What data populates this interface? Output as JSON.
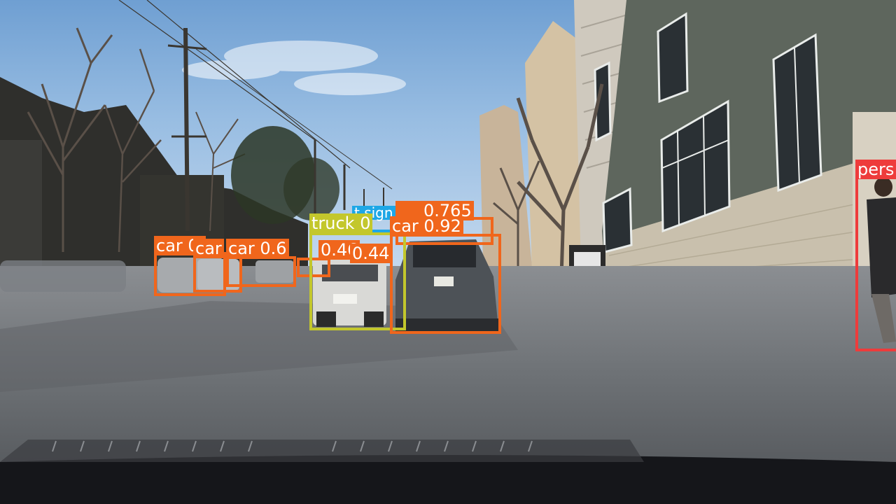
{
  "scene": {
    "description_colors": {
      "sky_top": "#6f9fd2",
      "road": "#75787c",
      "sidewalk": "#b7b2a7",
      "building_green": "#5e665d",
      "building_stone": "#c9c0ad"
    }
  },
  "detections": [
    {
      "id": "car-left-1",
      "label": "car 0.",
      "color": "#f0661c"
    },
    {
      "id": "car-left-2",
      "label": "car",
      "color": "#f0661c"
    },
    {
      "id": "car-left-3",
      "label": "car 0.6",
      "color": "#f0661c"
    },
    {
      "id": "truck",
      "label": "truck 0",
      "color": "#c3c72c"
    },
    {
      "id": "car-mid-1",
      "label": "0.46",
      "color": "#f0661c"
    },
    {
      "id": "car-mid-2",
      "label": "0.44",
      "color": "#f0661c"
    },
    {
      "id": "stop-sign",
      "label": "t sign",
      "color": "#1ea7e6"
    },
    {
      "id": "car-far",
      "label": "0.765",
      "color": "#f0661c"
    },
    {
      "id": "car-main",
      "label": "car 0.92",
      "color": "#f0661c"
    },
    {
      "id": "person",
      "label": "pers",
      "color": "#ee3b3b"
    }
  ]
}
